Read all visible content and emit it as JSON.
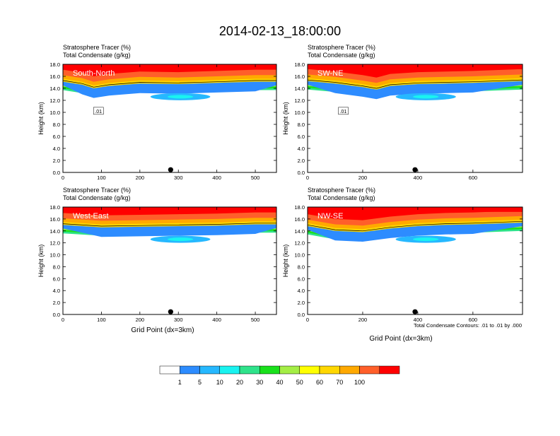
{
  "title": "2014-02-13_18:00:00",
  "footer_note": "Total Condensate Contours: .01 to .01 by .000",
  "colorbar": {
    "colors": [
      "#ffffff",
      "#2d8cff",
      "#26b8ff",
      "#19f3f0",
      "#2fe38b",
      "#19e11c",
      "#a4ee45",
      "#ffff00",
      "#ffd700",
      "#ffa900",
      "#ff5f2a",
      "#ff0000"
    ],
    "labels": [
      "1",
      "5",
      "10",
      "20",
      "30",
      "40",
      "50",
      "60",
      "70",
      "100"
    ]
  },
  "chart_data": [
    {
      "type": "heatmap",
      "title": "South-North",
      "header_line1": "Stratosphere Tracer   (%)",
      "header_line2": "Total Condensate   (g/kg)",
      "ylabel": "Height (km)",
      "xlabel": "",
      "ylim": [
        0,
        18
      ],
      "yticks": [
        "0.0",
        "2.0",
        "4.0",
        "6.0",
        "8.0",
        "10.0",
        "12.0",
        "14.0",
        "16.0",
        "18.0"
      ],
      "xlim": [
        0,
        555
      ],
      "xticks": [
        0,
        100,
        200,
        300,
        400,
        500
      ],
      "contour_label": ".01",
      "marker_x": 280,
      "tropopause_km": [
        [
          0,
          15.3
        ],
        [
          50,
          14.8
        ],
        [
          80,
          14.2
        ],
        [
          120,
          14.6
        ],
        [
          200,
          15.0
        ],
        [
          300,
          14.9
        ],
        [
          400,
          15.1
        ],
        [
          500,
          15.3
        ],
        [
          555,
          15.3
        ]
      ]
    },
    {
      "type": "heatmap",
      "title": "SW-NE",
      "header_line1": "Stratosphere Tracer   (%)",
      "header_line2": "Total Condensate   (g/kg)",
      "ylabel": "Height (km)",
      "xlabel": "",
      "ylim": [
        0,
        18
      ],
      "yticks": [
        "0.0",
        "2.0",
        "4.0",
        "6.0",
        "8.0",
        "10.0",
        "12.0",
        "14.0",
        "16.0",
        "18.0"
      ],
      "xlim": [
        0,
        780
      ],
      "xticks": [
        0,
        200,
        400,
        600
      ],
      "contour_label": ".01",
      "marker_x": 390,
      "tropopause_km": [
        [
          0,
          15.4
        ],
        [
          100,
          15.0
        ],
        [
          200,
          14.4
        ],
        [
          250,
          14.0
        ],
        [
          300,
          14.6
        ],
        [
          400,
          14.9
        ],
        [
          500,
          15.0
        ],
        [
          600,
          15.1
        ],
        [
          780,
          15.4
        ]
      ]
    },
    {
      "type": "heatmap",
      "title": "West-East",
      "header_line1": "Stratosphere Tracer   (%)",
      "header_line2": "Total Condensate   (g/kg)",
      "ylabel": "Height (km)",
      "xlabel": "Grid Point (dx=3km)",
      "ylim": [
        0,
        18
      ],
      "yticks": [
        "0.0",
        "2.0",
        "4.0",
        "6.0",
        "8.0",
        "10.0",
        "12.0",
        "14.0",
        "16.0",
        "18.0"
      ],
      "xlim": [
        0,
        555
      ],
      "xticks": [
        0,
        100,
        200,
        300,
        400,
        500
      ],
      "contour_label": "",
      "marker_x": 280,
      "tropopause_km": [
        [
          0,
          15.2
        ],
        [
          100,
          14.8
        ],
        [
          200,
          14.9
        ],
        [
          300,
          15.0
        ],
        [
          400,
          15.1
        ],
        [
          500,
          15.3
        ],
        [
          555,
          15.3
        ]
      ]
    },
    {
      "type": "heatmap",
      "title": "NW-SE",
      "header_line1": "Stratosphere Tracer   (%)",
      "header_line2": "Total Condensate   (g/kg)",
      "ylabel": "Height (km)",
      "xlabel": "Grid Point (dx=3km)",
      "ylim": [
        0,
        18
      ],
      "yticks": [
        "0.0",
        "2.0",
        "4.0",
        "6.0",
        "8.0",
        "10.0",
        "12.0",
        "14.0",
        "16.0",
        "18.0"
      ],
      "xlim": [
        0,
        780
      ],
      "xticks": [
        0,
        200,
        400,
        600
      ],
      "contour_label": "",
      "marker_x": 390,
      "tropopause_km": [
        [
          0,
          15.0
        ],
        [
          100,
          14.2
        ],
        [
          200,
          14.0
        ],
        [
          300,
          14.6
        ],
        [
          400,
          15.0
        ],
        [
          500,
          15.2
        ],
        [
          600,
          15.3
        ],
        [
          780,
          15.6
        ]
      ]
    }
  ]
}
